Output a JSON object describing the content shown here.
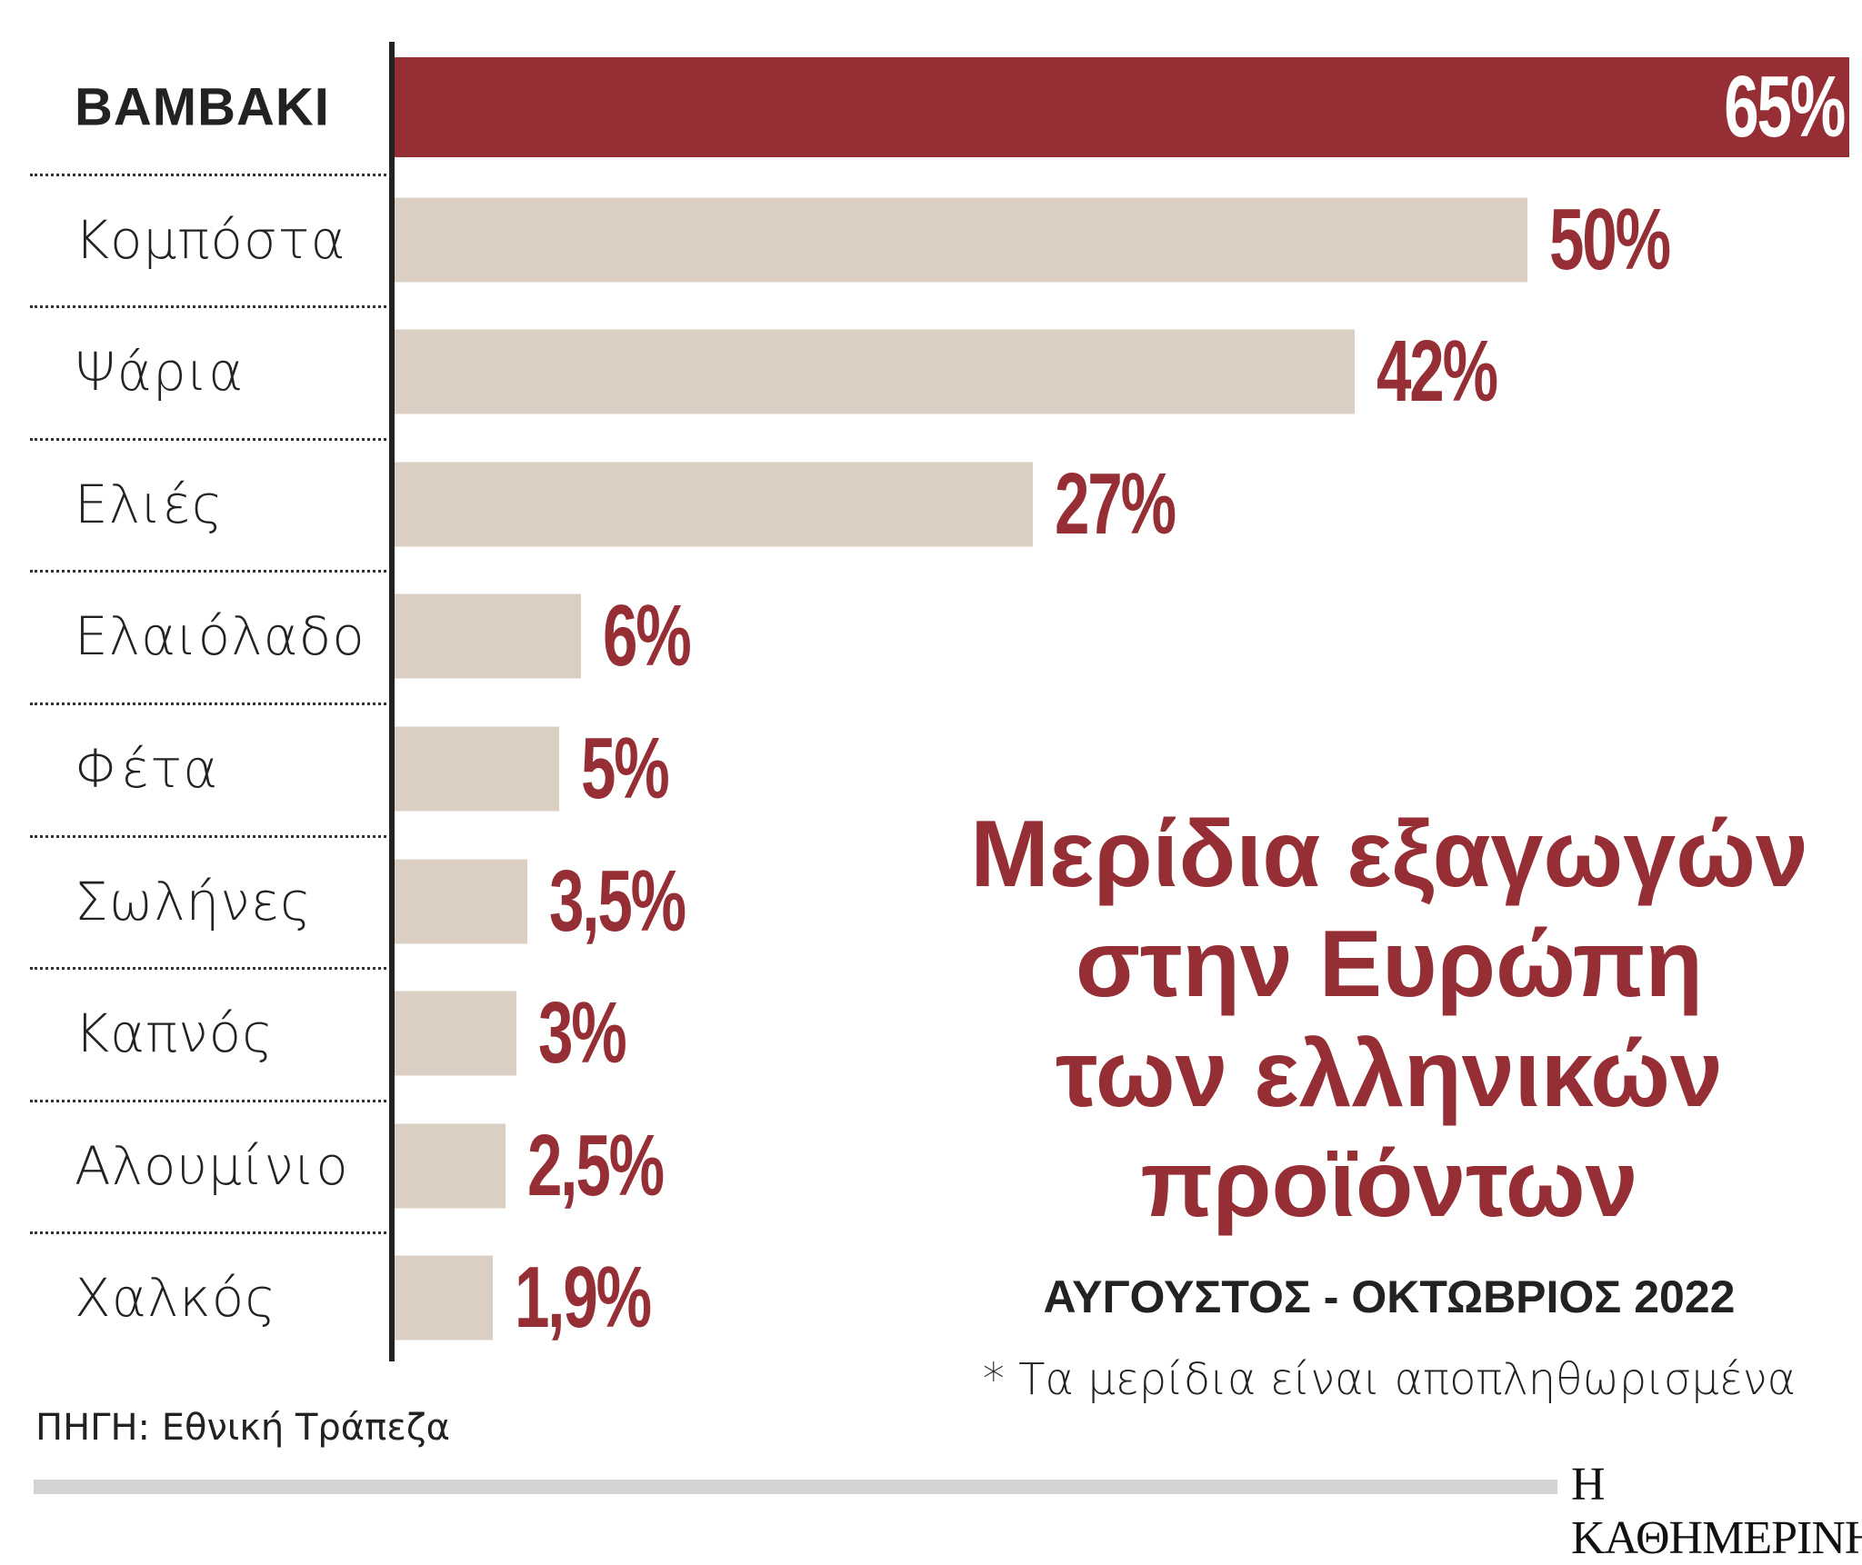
{
  "chart_data": {
    "type": "bar",
    "orientation": "horizontal",
    "title": "Μερίδια εξαγωγών στην Ευρώπη των ελληνικών προϊόντων",
    "title_lines": [
      "Μερίδια εξαγωγών",
      "στην Ευρώπη",
      "των ελληνικών",
      "προϊόντων"
    ],
    "subtitle": "ΑΥΓΟΥΣΤΟΣ - ΟΚΤΩΒΡΙΟΣ 2022",
    "note": "* Τα μερίδια είναι αποπληθωρισμένα",
    "categories": [
      "ΒΑΜΒΑΚΙ",
      "Κομπόστα",
      "Ψάρια",
      "Ελιές",
      "Ελαιόλαδο",
      "Φέτα",
      "Σωλήνες",
      "Καπνός",
      "Αλουμίνιο",
      "Χαλκός"
    ],
    "values": [
      65,
      50,
      42,
      27,
      6,
      5,
      3.5,
      3,
      2.5,
      1.9
    ],
    "value_labels": [
      "65%",
      "50%",
      "42%",
      "27%",
      "6%",
      "5%",
      "3,5%",
      "3%",
      "2,5%",
      "1,9%"
    ],
    "unit": "%",
    "highlight_index": 0,
    "grid": false,
    "colors": {
      "highlight": "#962f35",
      "bar": "#dbcfc4",
      "label": "#962f35"
    }
  },
  "source": "ΠΗΓΗ: Εθνική Τράπεζα",
  "logo": "Η ΚΑΘΗΜΕΡΙΝΗ"
}
